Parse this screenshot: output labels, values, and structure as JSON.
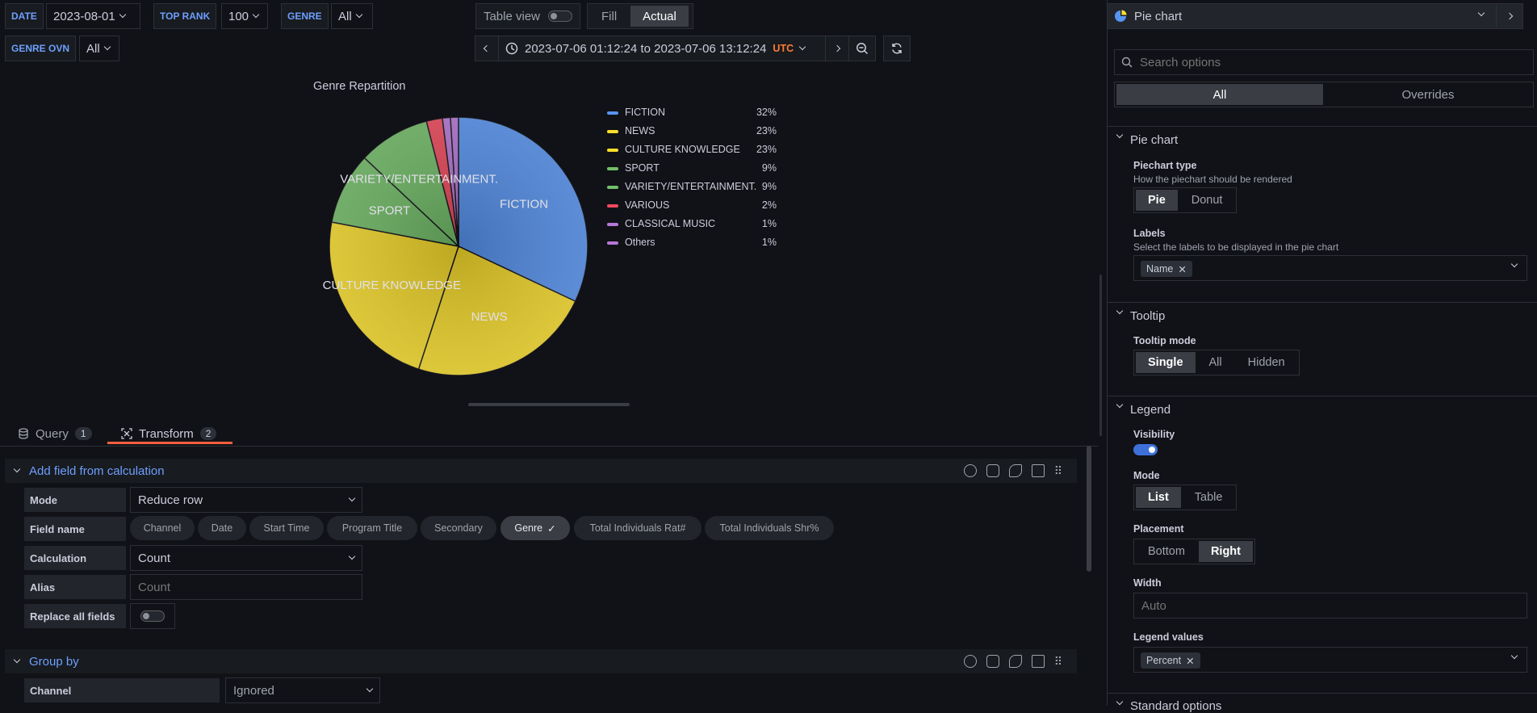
{
  "variables": [
    {
      "label": "DATE",
      "value": "2023-08-01"
    },
    {
      "label": "TOP RANK",
      "value": "100"
    },
    {
      "label": "GENRE",
      "value": "All"
    },
    {
      "label": "GENRE OVN",
      "value": "All"
    }
  ],
  "toolbar": {
    "table_view_label": "Table view",
    "fill_label": "Fill",
    "actual_label": "Actual",
    "time_range": "2023-07-06 01:12:24 to 2023-07-06 13:12:24",
    "timezone": "UTC"
  },
  "chart_data": {
    "type": "pie",
    "title": "Genre Repartition",
    "categories": [
      "FICTION",
      "NEWS",
      "CULTURE KNOWLEDGE",
      "SPORT",
      "VARIETY/ENTERTAINMENT.",
      "VARIOUS",
      "CLASSICAL MUSIC",
      "Others"
    ],
    "values": [
      32,
      23,
      23,
      9,
      9,
      2,
      1,
      1
    ],
    "percent_labels": [
      "32%",
      "23%",
      "23%",
      "9%",
      "9%",
      "2%",
      "1%",
      "1%"
    ],
    "colors": [
      "#5794f2",
      "#fade2a",
      "#fade2a",
      "#73bf69",
      "#73bf69",
      "#f2495c",
      "#b877d9",
      "#b877d9"
    ],
    "legend_placement": "right"
  },
  "tabs": [
    {
      "label": "Query",
      "count": "1"
    },
    {
      "label": "Transform",
      "count": "2"
    }
  ],
  "transforms": {
    "add_field": {
      "title": "Add field from calculation",
      "mode_label": "Mode",
      "mode_value": "Reduce row",
      "field_name_label": "Field name",
      "fields": [
        "Channel",
        "Date",
        "Start Time",
        "Program Title",
        "Secondary",
        "Genre",
        "Total Individuals Rat#",
        "Total Individuals Shr%"
      ],
      "selected_field": "Genre",
      "calculation_label": "Calculation",
      "calculation_value": "Count",
      "alias_label": "Alias",
      "alias_placeholder": "Count",
      "replace_label": "Replace all fields"
    },
    "group_by": {
      "title": "Group by",
      "channel_label": "Channel",
      "channel_value": "Ignored"
    }
  },
  "options": {
    "visualization": "Pie chart",
    "search_placeholder": "Search options",
    "all_tab": "All",
    "overrides_tab": "Overrides",
    "pie_section": "Pie chart",
    "piechart_type_label": "Piechart type",
    "piechart_type_desc": "How the piechart should be rendered",
    "piechart_types": [
      "Pie",
      "Donut"
    ],
    "labels_label": "Labels",
    "labels_desc": "Select the labels to be displayed in the pie chart",
    "labels_chip": "Name",
    "tooltip_section": "Tooltip",
    "tooltip_mode_label": "Tooltip mode",
    "tooltip_modes": [
      "Single",
      "All",
      "Hidden"
    ],
    "legend_section": "Legend",
    "visibility_label": "Visibility",
    "mode_label": "Mode",
    "legend_modes": [
      "List",
      "Table"
    ],
    "placement_label": "Placement",
    "placements": [
      "Bottom",
      "Right"
    ],
    "width_label": "Width",
    "width_placeholder": "Auto",
    "legend_values_label": "Legend values",
    "legend_values_chip": "Percent",
    "standard_section": "Standard options"
  }
}
